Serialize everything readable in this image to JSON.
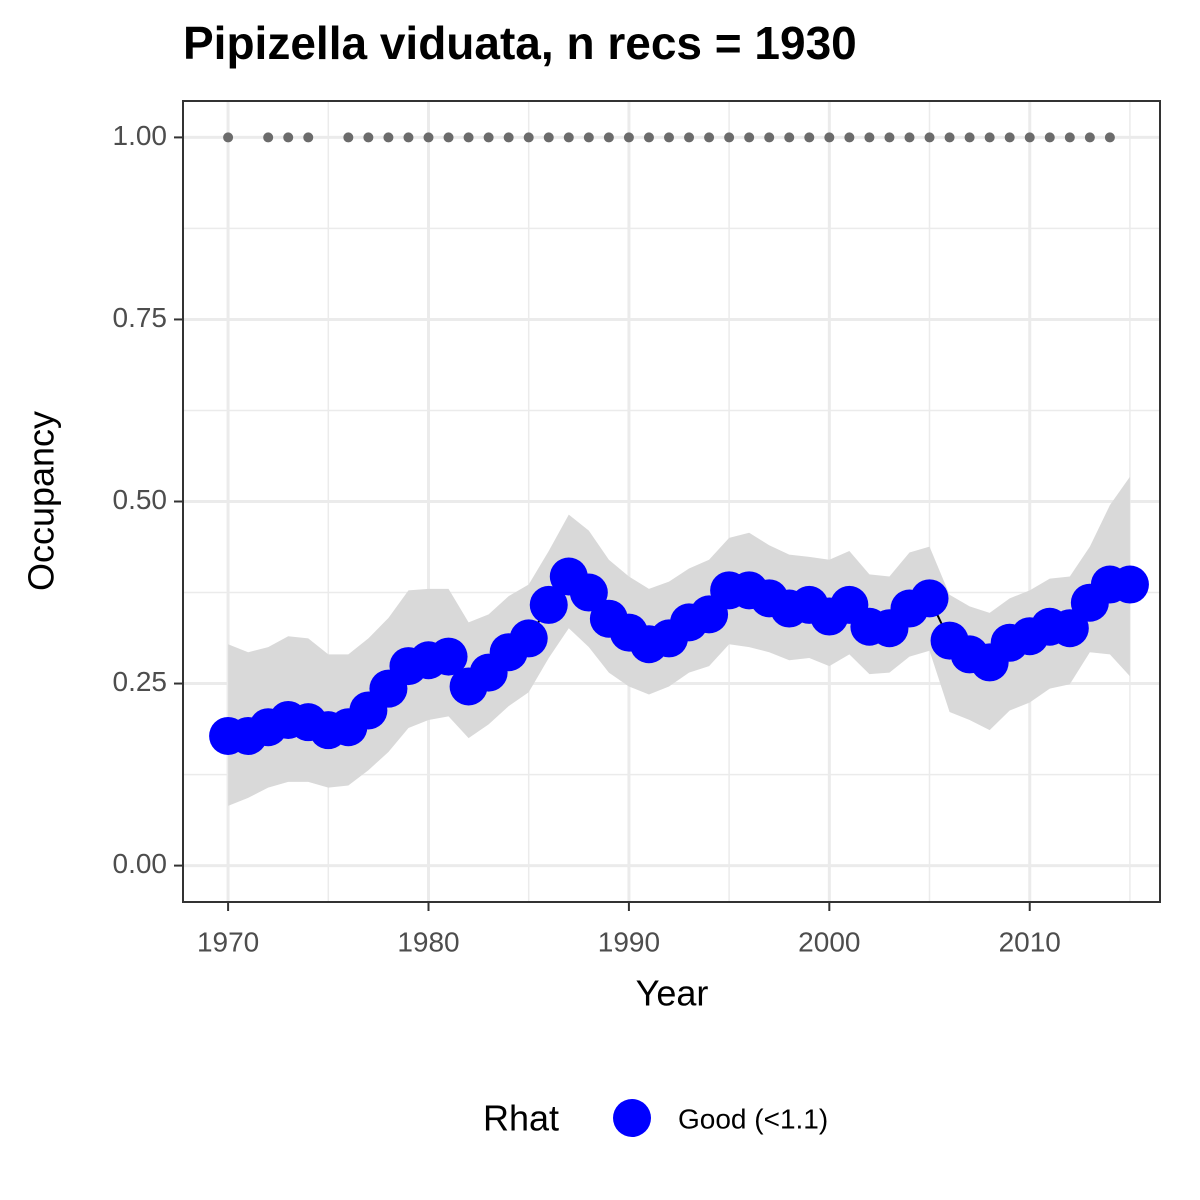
{
  "chart_data": {
    "type": "line",
    "title": "Pipizella viduata, n recs = 1930",
    "x_label": "Year",
    "y_label": "Occupancy",
    "legend_title": "Rhat",
    "legend_position": "bottom",
    "x": [
      1970,
      1971,
      1972,
      1973,
      1974,
      1975,
      1976,
      1977,
      1978,
      1979,
      1980,
      1981,
      1982,
      1983,
      1984,
      1985,
      1986,
      1987,
      1988,
      1989,
      1990,
      1991,
      1992,
      1993,
      1994,
      1995,
      1996,
      1997,
      1998,
      1999,
      2000,
      2001,
      2002,
      2003,
      2004,
      2005,
      2006,
      2007,
      2008,
      2009,
      2010,
      2011,
      2012,
      2013,
      2014,
      2015
    ],
    "series": [
      {
        "name": "Good (<1.1)",
        "color": "#0000ff",
        "values": [
          0.178,
          0.178,
          0.19,
          0.2,
          0.197,
          0.186,
          0.19,
          0.213,
          0.243,
          0.274,
          0.282,
          0.287,
          0.246,
          0.265,
          0.293,
          0.312,
          0.358,
          0.397,
          0.375,
          0.339,
          0.32,
          0.304,
          0.312,
          0.334,
          0.345,
          0.378,
          0.378,
          0.367,
          0.353,
          0.358,
          0.342,
          0.358,
          0.328,
          0.326,
          0.353,
          0.367,
          0.309,
          0.29,
          0.279,
          0.306,
          0.315,
          0.328,
          0.326,
          0.361,
          0.386,
          0.386
        ]
      }
    ],
    "ribbon": {
      "color": "#d9d9d9",
      "upper": [
        0.304,
        0.293,
        0.3,
        0.315,
        0.312,
        0.29,
        0.29,
        0.312,
        0.34,
        0.378,
        0.38,
        0.38,
        0.334,
        0.345,
        0.37,
        0.386,
        0.432,
        0.482,
        0.46,
        0.42,
        0.397,
        0.38,
        0.39,
        0.408,
        0.42,
        0.45,
        0.457,
        0.44,
        0.427,
        0.424,
        0.42,
        0.432,
        0.4,
        0.397,
        0.43,
        0.438,
        0.372,
        0.356,
        0.347,
        0.367,
        0.378,
        0.394,
        0.397,
        0.438,
        0.495,
        0.534
      ],
      "lower": [
        0.082,
        0.093,
        0.107,
        0.115,
        0.115,
        0.107,
        0.11,
        0.131,
        0.156,
        0.189,
        0.2,
        0.205,
        0.175,
        0.194,
        0.219,
        0.238,
        0.285,
        0.326,
        0.3,
        0.265,
        0.246,
        0.235,
        0.246,
        0.265,
        0.274,
        0.304,
        0.3,
        0.293,
        0.282,
        0.285,
        0.274,
        0.29,
        0.263,
        0.265,
        0.287,
        0.295,
        0.211,
        0.2,
        0.186,
        0.213,
        0.224,
        0.243,
        0.249,
        0.293,
        0.29,
        0.26
      ]
    },
    "observations": {
      "color": "#6b6b6b",
      "x": [
        1970,
        1972,
        1973,
        1974,
        1976,
        1977,
        1978,
        1979,
        1980,
        1981,
        1982,
        1983,
        1984,
        1985,
        1986,
        1987,
        1988,
        1989,
        1990,
        1991,
        1992,
        1993,
        1994,
        1995,
        1996,
        1997,
        1998,
        1999,
        2000,
        2001,
        2002,
        2003,
        2004,
        2005,
        2006,
        2007,
        2008,
        2009,
        2010,
        2011,
        2012,
        2013,
        2014
      ],
      "values": [
        1,
        1,
        1,
        1,
        1,
        1,
        1,
        1,
        1,
        1,
        1,
        1,
        1,
        1,
        1,
        1,
        1,
        1,
        1,
        1,
        1,
        1,
        1,
        1,
        1,
        1,
        1,
        1,
        1,
        1,
        1,
        1,
        1,
        1,
        1,
        1,
        1,
        1,
        1,
        1,
        1,
        1,
        1
      ]
    },
    "xlim": [
      1967.75,
      2016.5
    ],
    "ylim": [
      -0.05,
      1.05
    ],
    "xticks": [
      1970,
      1980,
      1990,
      2000,
      2010
    ],
    "x_minor_ticks": [
      1975,
      1985,
      1995,
      2005,
      2015
    ],
    "yticks": [
      {
        "value": 0,
        "label": "0.00"
      },
      {
        "value": 0.25,
        "label": "0.25"
      },
      {
        "value": 0.5,
        "label": "0.50"
      },
      {
        "value": 0.75,
        "label": "0.75"
      },
      {
        "value": 1,
        "label": "1.00"
      }
    ],
    "y_minor_ticks": [
      0.125,
      0.375,
      0.625,
      0.875
    ],
    "grid": true
  }
}
